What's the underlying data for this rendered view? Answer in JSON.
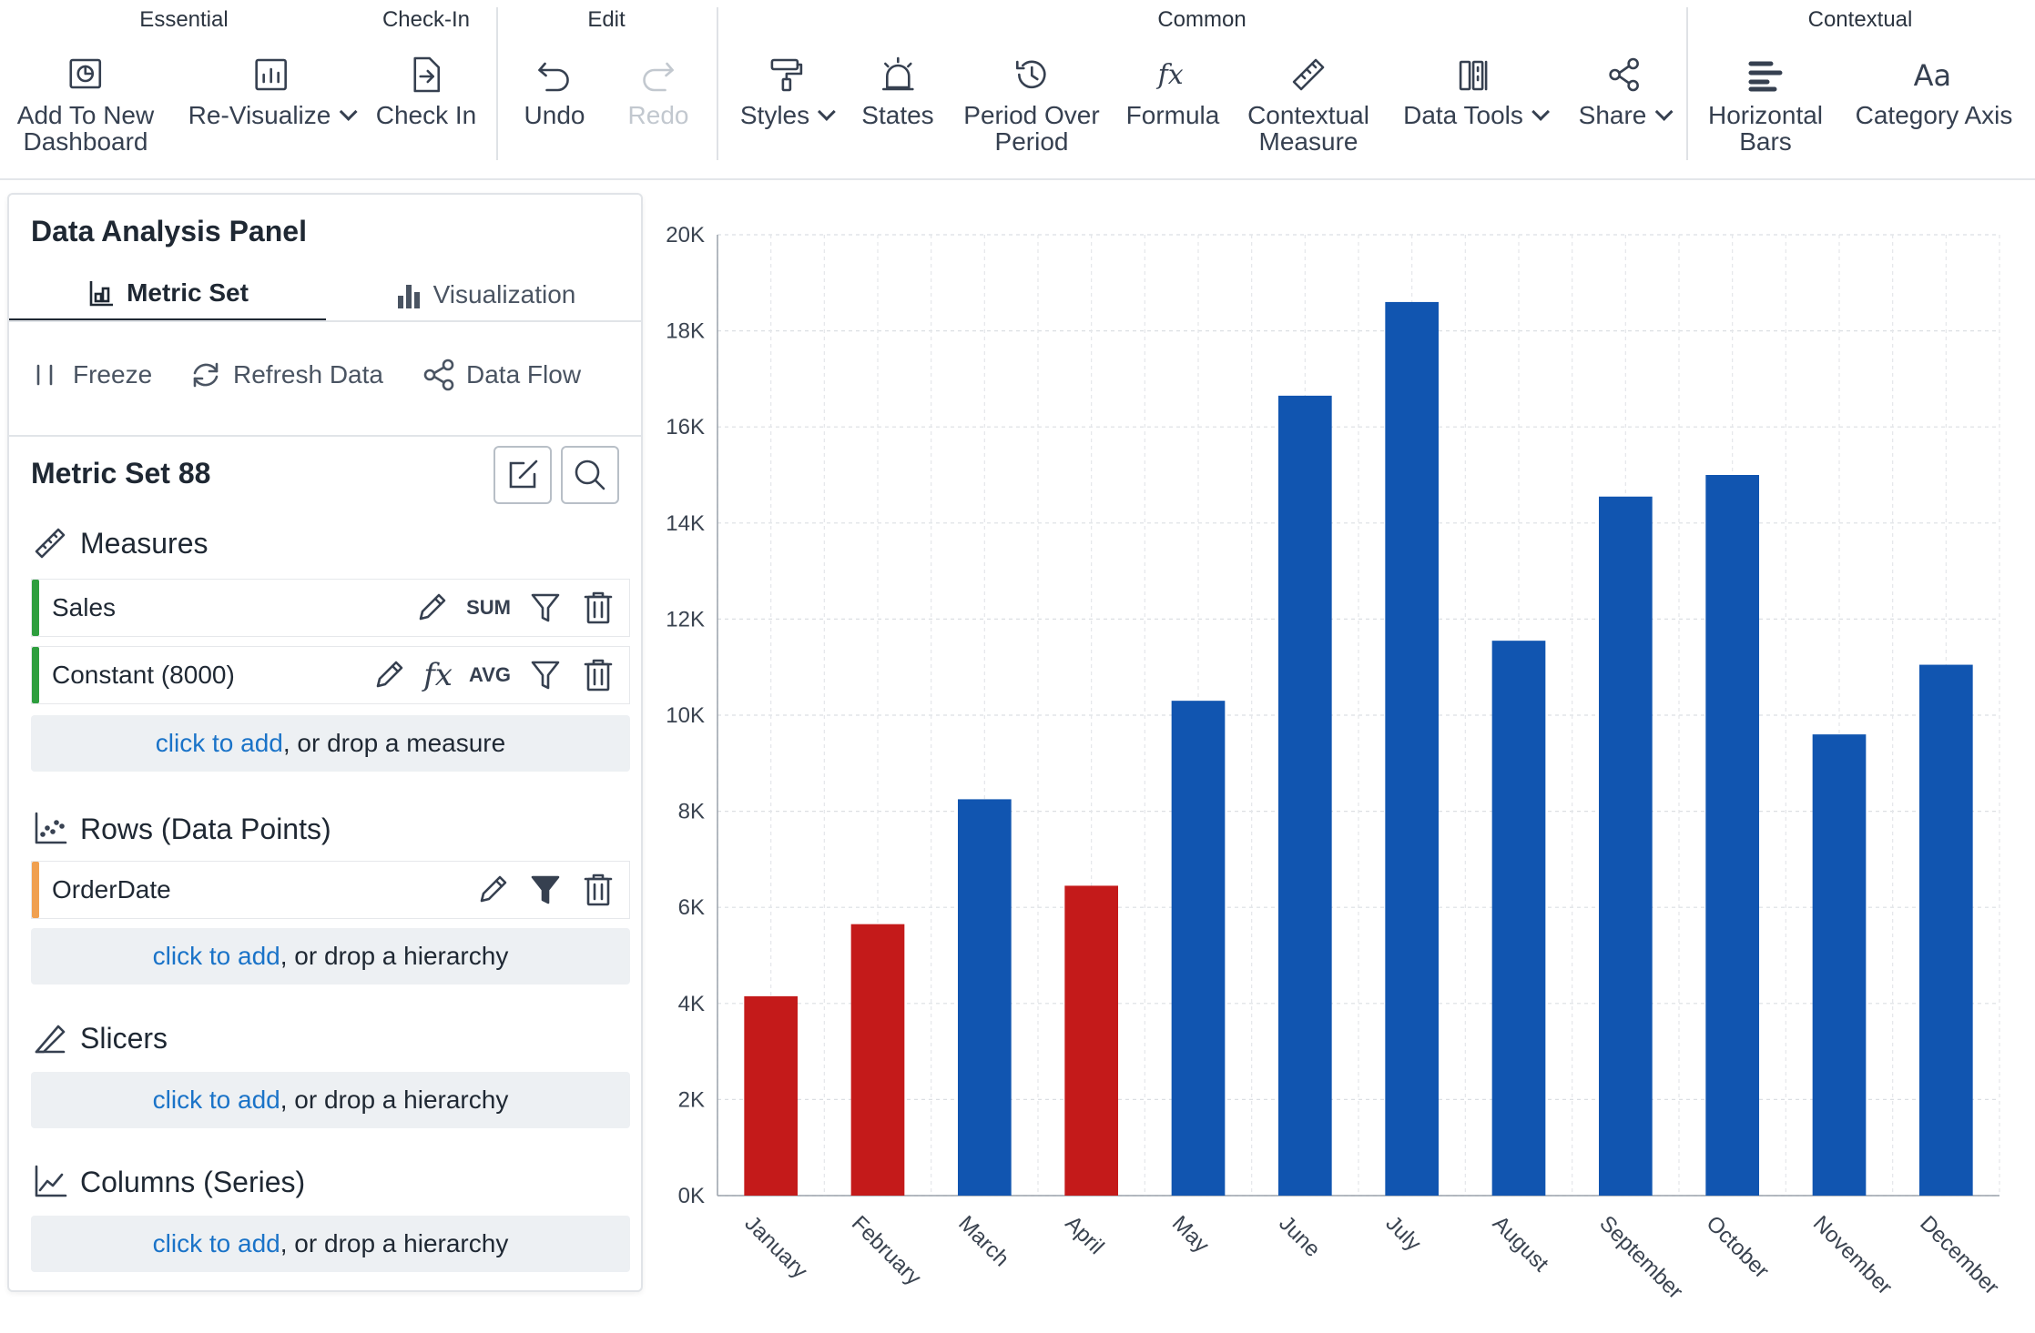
{
  "toolbar": {
    "groups": {
      "essential": "Essential",
      "checkin": "Check-In",
      "edit": "Edit",
      "common": "Common",
      "contextual": "Contextual"
    },
    "buttons": {
      "add_to_dashboard": "Add To New\nDashboard",
      "revisualize": "Re-Visualize",
      "check_in": "Check In",
      "undo": "Undo",
      "redo": "Redo",
      "styles": "Styles",
      "states": "States",
      "period_over_period": "Period Over\nPeriod",
      "formula": "Formula",
      "contextual_measure": "Contextual\nMeasure",
      "data_tools": "Data Tools",
      "share": "Share",
      "horizontal_bars": "Horizontal\nBars",
      "category_axis": "Category Axis"
    }
  },
  "panel": {
    "title": "Data Analysis Panel",
    "tabs": {
      "metric_set": "Metric Set",
      "visualization": "Visualization"
    },
    "actions": {
      "freeze": "Freeze",
      "refresh": "Refresh Data",
      "data_flow": "Data Flow"
    },
    "metric_set_title": "Metric Set 88",
    "sections": {
      "measures": "Measures",
      "rows": "Rows (Data Points)",
      "slicers": "Slicers",
      "columns": "Columns (Series)"
    },
    "measures": [
      {
        "name": "Sales",
        "agg": "SUM",
        "color": "#2e9e3e"
      },
      {
        "name": "Constant (8000)",
        "agg": "AVG",
        "color": "#2e9e3e"
      }
    ],
    "rows": [
      {
        "name": "OrderDate",
        "color": "#f0a050"
      }
    ],
    "dropzones": {
      "link": "click to add",
      "measure_rest": ", or drop a measure",
      "hierarchy_rest": ", or drop a hierarchy"
    }
  },
  "colors": {
    "below": "#c41a1a",
    "above": "#1155b0",
    "accent": "#1a73c8"
  },
  "chart_data": {
    "type": "bar",
    "categories": [
      "January",
      "February",
      "March",
      "April",
      "May",
      "June",
      "July",
      "August",
      "September",
      "October",
      "November",
      "December"
    ],
    "series": [
      {
        "name": "Sales",
        "values": [
          4150,
          5650,
          8250,
          6450,
          10300,
          16650,
          18600,
          11550,
          14550,
          15000,
          9600,
          11050
        ]
      }
    ],
    "bar_colors": [
      "#c41a1a",
      "#c41a1a",
      "#1155b0",
      "#c41a1a",
      "#1155b0",
      "#1155b0",
      "#1155b0",
      "#1155b0",
      "#1155b0",
      "#1155b0",
      "#1155b0",
      "#1155b0"
    ],
    "ylim": [
      0,
      20000
    ],
    "yticks": [
      "0K",
      "2K",
      "4K",
      "6K",
      "8K",
      "10K",
      "12K",
      "14K",
      "16K",
      "18K",
      "20K"
    ],
    "grid": true,
    "xlabel": "",
    "ylabel": ""
  }
}
